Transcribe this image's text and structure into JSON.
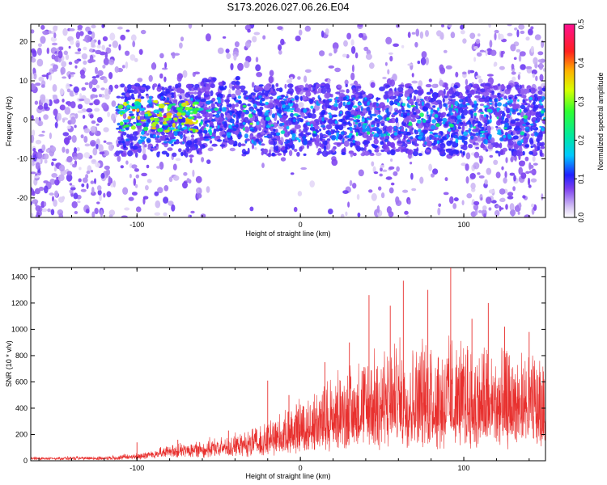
{
  "figure_title": "S173.2026.027.06.26.E04",
  "colors": {
    "snr_line": "#e8302e",
    "axis": "#000000",
    "background": "#ffffff"
  },
  "chart_data": [
    {
      "type": "heatmap",
      "name": "spectrogram",
      "title": "S173.2026.027.06.26.E04",
      "xlabel": "Height of straight line (km)",
      "ylabel": "Frequency (Hz)",
      "xlim": [
        -165,
        150
      ],
      "ylim": [
        -25,
        24.5
      ],
      "xticks": [
        -100,
        0,
        100
      ],
      "yticks": [
        -20,
        -10,
        0,
        10,
        20
      ],
      "colorbar": {
        "label": "Normalized spectral amplitude",
        "range": [
          0.0,
          0.5
        ],
        "ticks": [
          "0.0",
          "0.1",
          "0.2",
          "0.3",
          "0.4",
          "0.5"
        ]
      },
      "band_center_hz": 0,
      "band_halfwidth_hz": 6,
      "description_values": {
        "strong_region_km": [
          -110,
          -60
        ],
        "peak_amplitude": 0.5
      }
    },
    {
      "type": "line",
      "name": "snr",
      "xlabel": "Height of straight line (km)",
      "ylabel": "SNR (10 * v/v)",
      "xlim": [
        -165,
        150
      ],
      "ylim": [
        0,
        1470
      ],
      "xticks": [
        -100,
        0,
        100
      ],
      "yticks": [
        0,
        200,
        400,
        600,
        800,
        1000,
        1200,
        1400
      ],
      "envelope": {
        "x": [
          -165,
          -120,
          -100,
          -80,
          -60,
          -40,
          -20,
          0,
          20,
          40,
          60,
          80,
          100,
          120,
          150
        ],
        "baseline": [
          15,
          15,
          25,
          60,
          70,
          80,
          100,
          150,
          200,
          250,
          280,
          280,
          250,
          250,
          250
        ],
        "typical_peak": [
          30,
          35,
          60,
          120,
          160,
          200,
          300,
          480,
          650,
          800,
          900,
          950,
          900,
          850,
          800
        ]
      },
      "spikes": [
        {
          "x": -100,
          "y": 140
        },
        {
          "x": -75,
          "y": 160
        },
        {
          "x": -44,
          "y": 230
        },
        {
          "x": -20,
          "y": 610
        },
        {
          "x": -7,
          "y": 500
        },
        {
          "x": 15,
          "y": 750
        },
        {
          "x": 30,
          "y": 900
        },
        {
          "x": 42,
          "y": 1260
        },
        {
          "x": 55,
          "y": 1180
        },
        {
          "x": 63,
          "y": 1370
        },
        {
          "x": 78,
          "y": 1300
        },
        {
          "x": 92,
          "y": 1470
        },
        {
          "x": 105,
          "y": 1080
        },
        {
          "x": 115,
          "y": 1200
        },
        {
          "x": 125,
          "y": 1020
        },
        {
          "x": 140,
          "y": 980
        }
      ]
    }
  ]
}
